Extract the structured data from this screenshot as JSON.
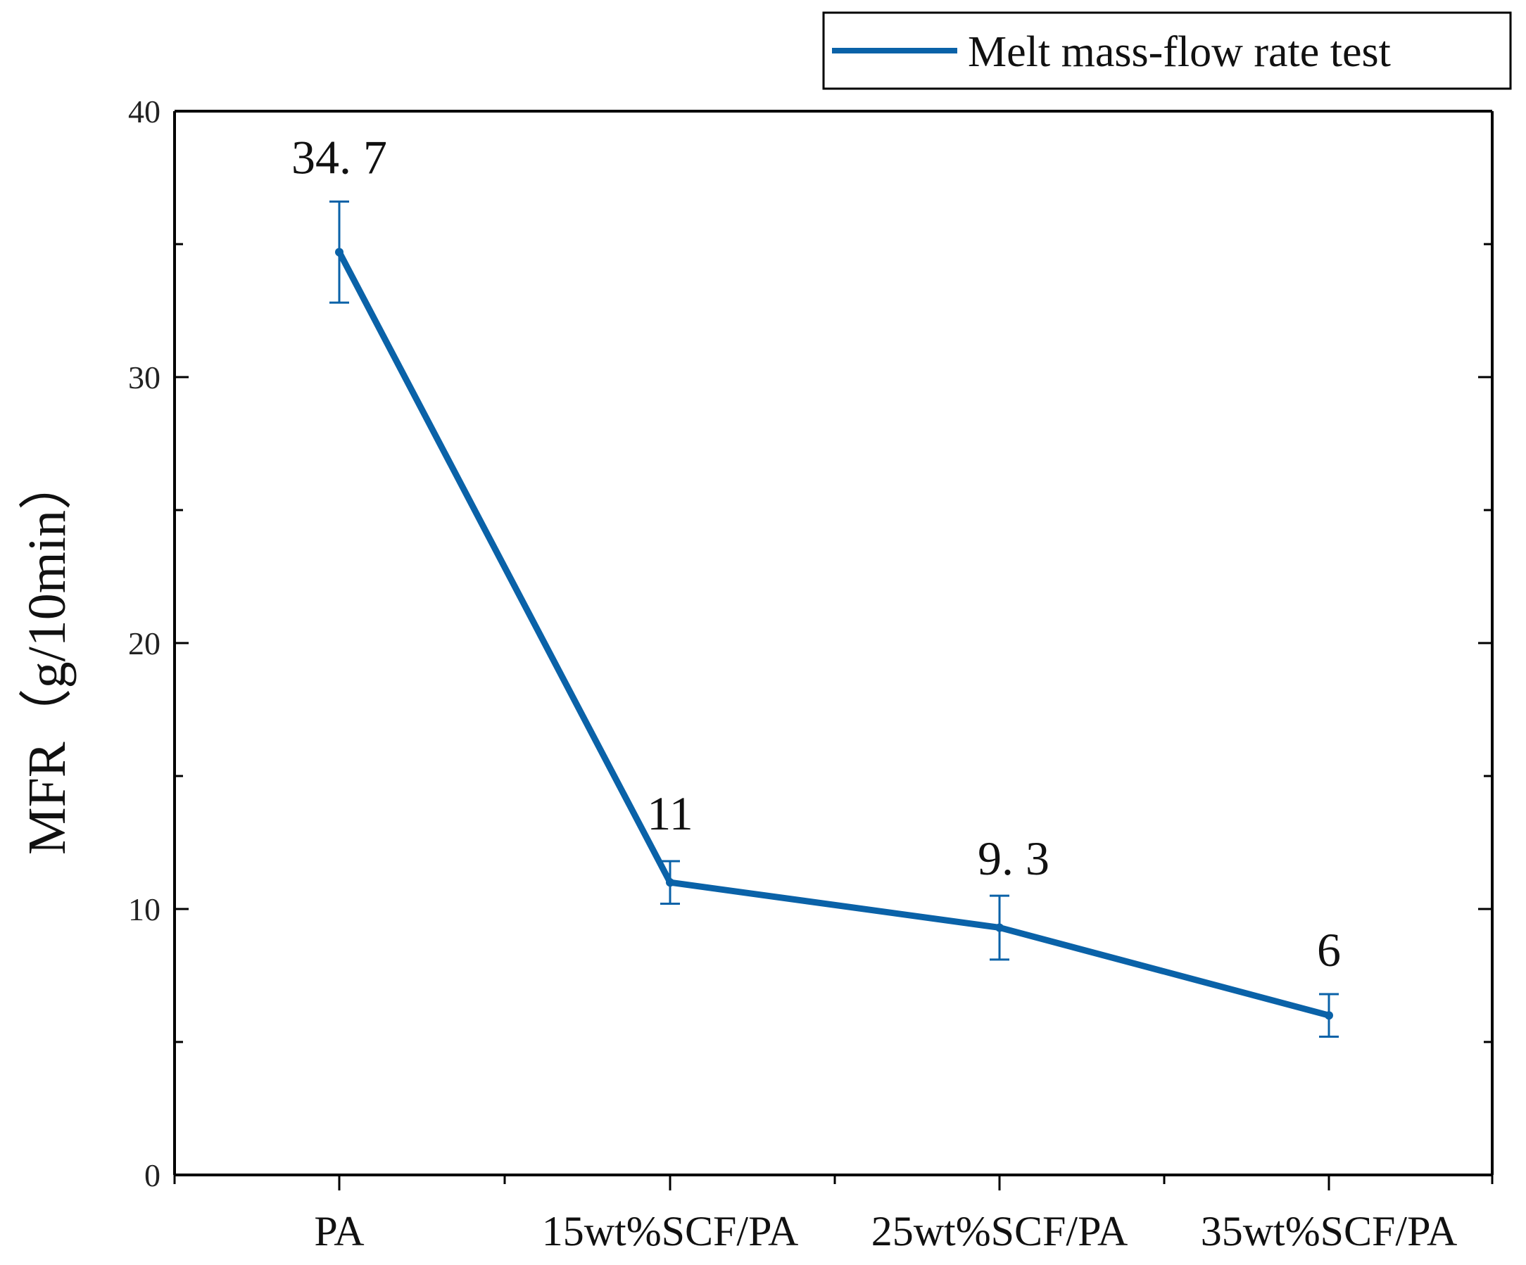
{
  "chart_data": {
    "type": "line",
    "title": "",
    "xlabel": "",
    "ylabel": "MFR（g/10min）",
    "ylim": [
      0,
      40
    ],
    "yticks": [
      0,
      10,
      20,
      30,
      40
    ],
    "grid": false,
    "legend_position": "top-right",
    "color": "#0a62a8",
    "categories": [
      "PA",
      "15wt%SCF/PA",
      "25wt%SCF/PA",
      "35wt%SCF/PA"
    ],
    "series": [
      {
        "name": "Melt mass-flow rate test",
        "values": [
          34.7,
          11,
          9.3,
          6
        ],
        "error": [
          1.9,
          0.8,
          1.2,
          0.8
        ],
        "labels": [
          "34. 7",
          "11",
          "9. 3",
          "6"
        ]
      }
    ]
  }
}
